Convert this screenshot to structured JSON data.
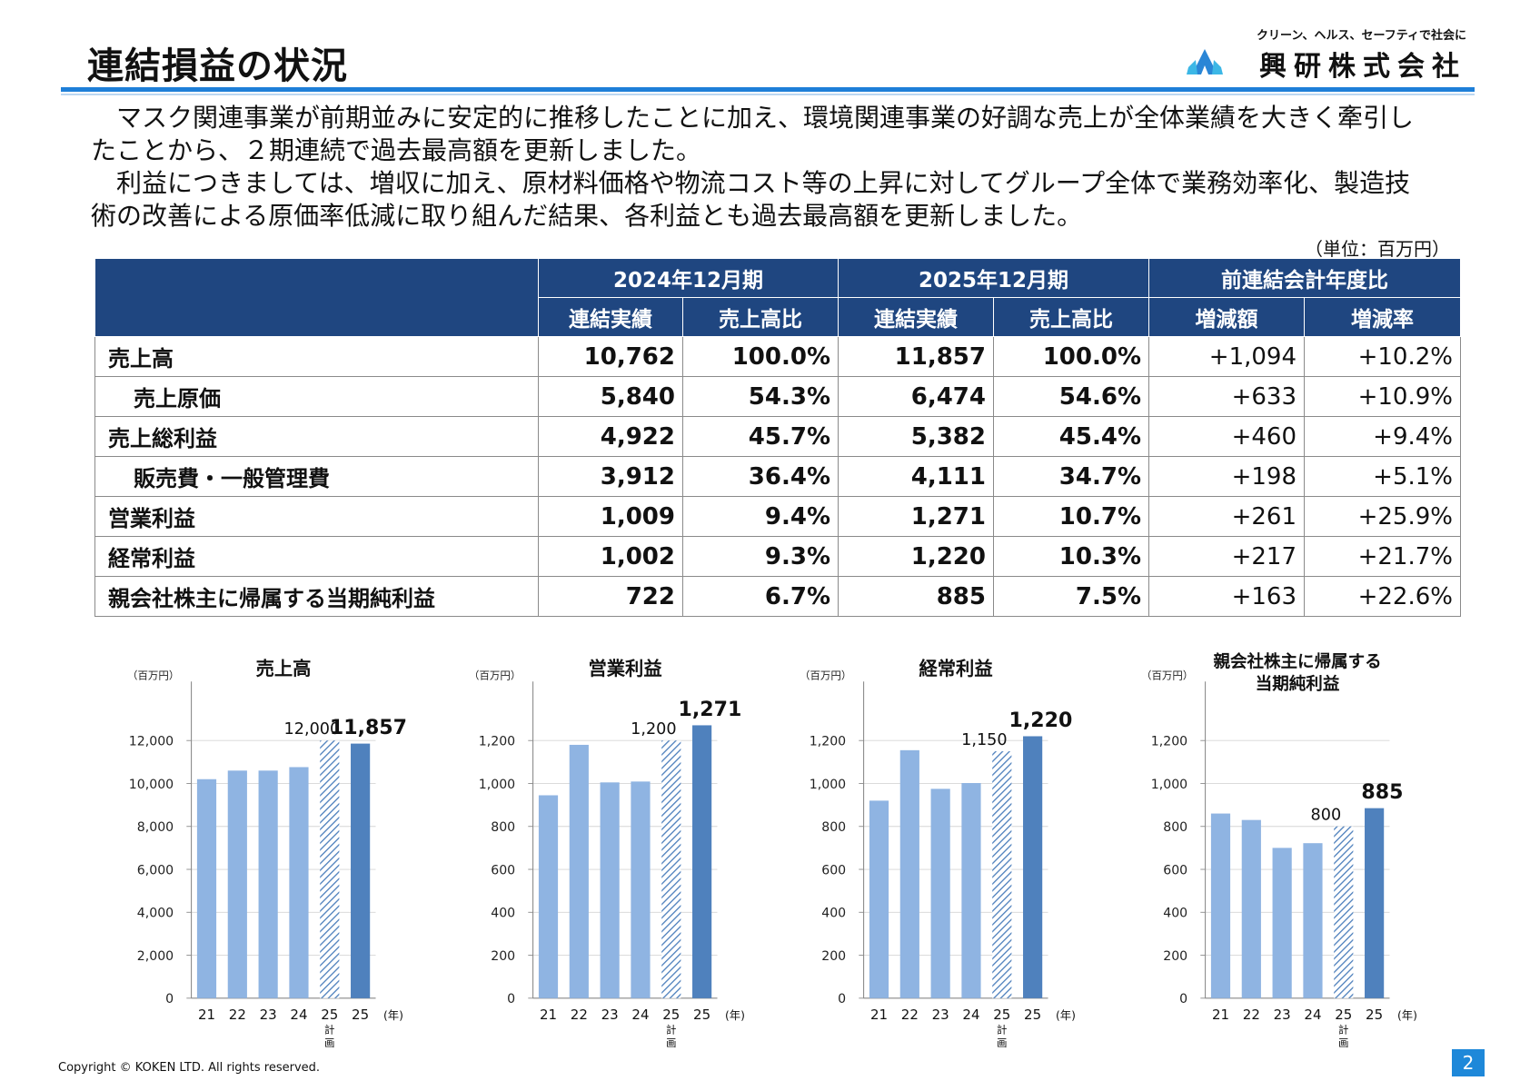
{
  "header": {
    "title": "連結損益の状況",
    "logo_tagline": "クリーン、ヘルス、セーフティで社会に",
    "logo_name": "興研株式会社"
  },
  "intro": {
    "p1": "　マスク関連事業が前期並みに安定的に推移したことに加え、環境関連事業の好調な売上が全体業績を大きく牽引したことから、２期連続で過去最高額を更新しました。",
    "p2": "　利益につきましては、増収に加え、原材料価格や物流コスト等の上昇に対してグループ全体で業務効率化、製造技術の改善による原価率低減に取り組んだ結果、各利益とも過去最高額を更新しました。"
  },
  "unit_note": "（単位：百万円）",
  "table": {
    "groups": [
      "2024年12月期",
      "2025年12月期",
      "前連結会計年度比"
    ],
    "subheaders": [
      "連結実績",
      "売上高比",
      "連結実績",
      "売上高比",
      "増減額",
      "増減率"
    ],
    "rows": [
      {
        "label": "売上高",
        "cells": [
          "10,762",
          "100.0%",
          "11,857",
          "100.0%",
          "+1,094",
          "+10.2%"
        ]
      },
      {
        "label": "売上原価",
        "cells": [
          "5,840",
          "54.3%",
          "6,474",
          "54.6%",
          "+633",
          "+10.9%"
        ]
      },
      {
        "label": "売上総利益",
        "cells": [
          "4,922",
          "45.7%",
          "5,382",
          "45.4%",
          "+460",
          "+9.4%"
        ]
      },
      {
        "label": "販売費・一般管理費",
        "cells": [
          "3,912",
          "36.4%",
          "4,111",
          "34.7%",
          "+198",
          "+5.1%"
        ]
      },
      {
        "label": "営業利益",
        "cells": [
          "1,009",
          "9.4%",
          "1,271",
          "10.7%",
          "+261",
          "+25.9%"
        ]
      },
      {
        "label": "経常利益",
        "cells": [
          "1,002",
          "9.3%",
          "1,220",
          "10.3%",
          "+217",
          "+21.7%"
        ]
      },
      {
        "label": "親会社株主に帰属する当期純利益",
        "cells": [
          "722",
          "6.7%",
          "885",
          "7.5%",
          "+163",
          "+22.6%"
        ]
      }
    ]
  },
  "chart_data": [
    {
      "type": "bar",
      "title": "売上高",
      "unit_label": "（百万円）",
      "x_unit": "(年)",
      "categories": [
        "21",
        "22",
        "23",
        "24",
        "25",
        "25"
      ],
      "plan_note": "計画",
      "values": [
        10200,
        10600,
        10600,
        10762,
        12000,
        11857
      ],
      "kinds": [
        "actual",
        "actual",
        "actual",
        "actual",
        "plan",
        "current"
      ],
      "value_labels": [
        "",
        "",
        "",
        "",
        "12,000",
        "11,857"
      ],
      "yticks": [
        "0",
        "2,000",
        "4,000",
        "6,000",
        "8,000",
        "10,000",
        "12,000"
      ],
      "ylim": [
        0,
        14000
      ]
    },
    {
      "type": "bar",
      "title": "営業利益",
      "unit_label": "（百万円）",
      "x_unit": "(年)",
      "categories": [
        "21",
        "22",
        "23",
        "24",
        "25",
        "25"
      ],
      "plan_note": "計画",
      "values": [
        945,
        1180,
        1005,
        1009,
        1200,
        1271
      ],
      "kinds": [
        "actual",
        "actual",
        "actual",
        "actual",
        "plan",
        "current"
      ],
      "value_labels": [
        "",
        "",
        "",
        "",
        "1,200",
        "1,271"
      ],
      "yticks": [
        "0",
        "200",
        "400",
        "600",
        "800",
        "1,000",
        "1,200"
      ],
      "ylim": [
        0,
        1400
      ]
    },
    {
      "type": "bar",
      "title": "経常利益",
      "unit_label": "（百万円）",
      "x_unit": "(年)",
      "categories": [
        "21",
        "22",
        "23",
        "24",
        "25",
        "25"
      ],
      "plan_note": "計画",
      "values": [
        920,
        1155,
        975,
        1002,
        1150,
        1220
      ],
      "kinds": [
        "actual",
        "actual",
        "actual",
        "actual",
        "plan",
        "current"
      ],
      "value_labels": [
        "",
        "",
        "",
        "",
        "1,150",
        "1,220"
      ],
      "yticks": [
        "0",
        "200",
        "400",
        "600",
        "800",
        "1,000",
        "1,200"
      ],
      "ylim": [
        0,
        1400
      ]
    },
    {
      "type": "bar",
      "title": "親会社株主に帰属する当期純利益",
      "title_lines": [
        "親会社株主に帰属する",
        "当期純利益"
      ],
      "unit_label": "（百万円）",
      "x_unit": "(年)",
      "categories": [
        "21",
        "22",
        "23",
        "24",
        "25",
        "25"
      ],
      "plan_note": "計画",
      "values": [
        860,
        830,
        700,
        722,
        800,
        885
      ],
      "kinds": [
        "actual",
        "actual",
        "actual",
        "actual",
        "plan",
        "current"
      ],
      "value_labels": [
        "",
        "",
        "",
        "",
        "800",
        "885"
      ],
      "yticks": [
        "0",
        "200",
        "400",
        "600",
        "800",
        "1,000",
        "1,200"
      ],
      "ylim": [
        0,
        1400
      ]
    }
  ],
  "colors": {
    "actual": "#8fb4e2",
    "current": "#4f81bd",
    "plan_stripe": "#4f81bd",
    "header": "#1f4680",
    "rule": "#1e7fd8"
  },
  "footer": {
    "copyright": "Copyright © KOKEN LTD. All rights reserved.",
    "page": "2"
  }
}
